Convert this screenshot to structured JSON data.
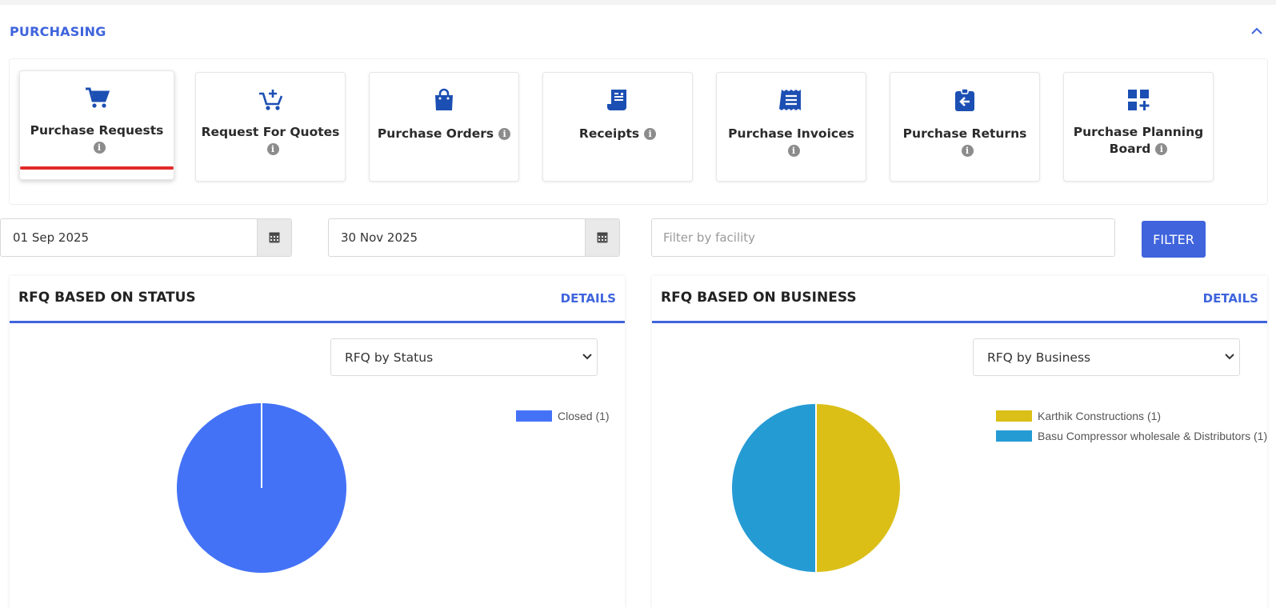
{
  "section": {
    "title": "PURCHASING"
  },
  "tiles": [
    {
      "label": "Purchase Requests",
      "icon": "cart-icon",
      "active": true
    },
    {
      "label": "Request For Quotes",
      "icon": "cart-plus-icon",
      "active": false
    },
    {
      "label": "Purchase Orders",
      "icon": "shopping-bag-icon",
      "active": false
    },
    {
      "label": "Receipts",
      "icon": "receipt-icon",
      "active": false
    },
    {
      "label": "Purchase Invoices",
      "icon": "invoice-icon",
      "active": false
    },
    {
      "label": "Purchase Returns",
      "icon": "return-clipboard-icon",
      "active": false
    },
    {
      "label": "Purchase Planning Board",
      "icon": "dashboard-add-icon",
      "active": false
    }
  ],
  "filters": {
    "start_date": "01 Sep 2025",
    "end_date": "30 Nov 2025",
    "facility_placeholder": "Filter by facility",
    "facility_value": "",
    "filter_label": "FILTER"
  },
  "cards": [
    {
      "title": "RFQ BASED ON STATUS",
      "details_label": "DETAILS",
      "select_value": "RFQ by Status"
    },
    {
      "title": "RFQ BASED ON BUSINESS",
      "details_label": "DETAILS",
      "select_value": "RFQ by Business"
    }
  ],
  "colors": {
    "accent": "#3f64dc",
    "active_underline": "#e02b2b",
    "icon_blue": "#1c4fb3"
  },
  "chart_data": [
    {
      "type": "pie",
      "title": "",
      "legend_position": "top-right",
      "slices": [
        {
          "label": "Closed (1)",
          "value": 1,
          "color": "#4472f7"
        }
      ]
    },
    {
      "type": "pie",
      "title": "",
      "legend_position": "top-right",
      "slices": [
        {
          "label": "Karthik Constructions (1)",
          "value": 1,
          "color": "#dbbf17"
        },
        {
          "label": "Basu Compressor wholesale & Distributors (1)",
          "value": 1,
          "color": "#259bd4"
        }
      ]
    }
  ]
}
